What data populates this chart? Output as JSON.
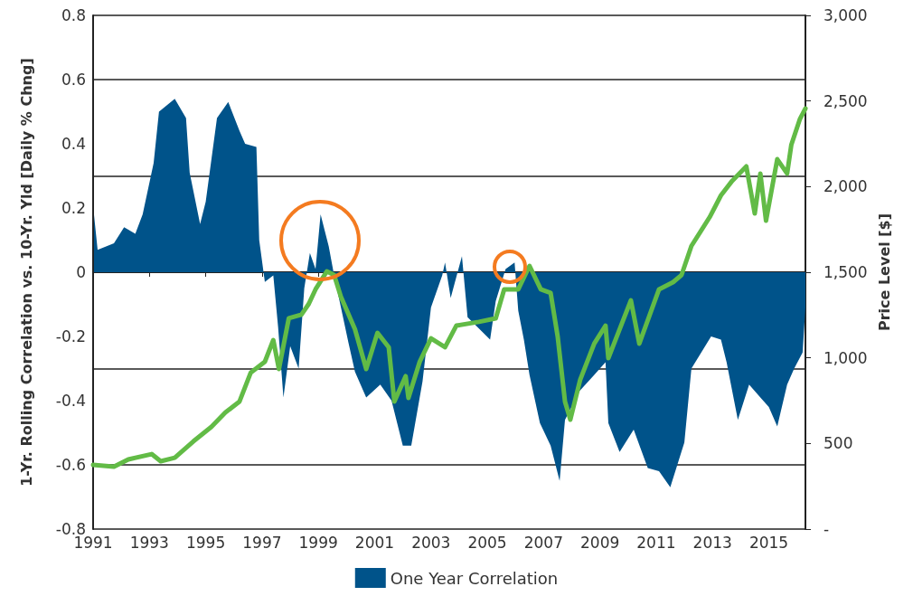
{
  "chart_data": {
    "type": "area",
    "ylabel": "1-Yr. Rolling Correlation vs. 10-Yr. Yld [Daily % Chng]",
    "y2label": "Price Level [$]",
    "xlim": [
      1991,
      2016.3
    ],
    "xticks": [
      1991,
      1993,
      1995,
      1997,
      1999,
      2001,
      2003,
      2005,
      2007,
      2009,
      2011,
      2013,
      2015
    ],
    "ylim": [
      -0.8,
      0.8
    ],
    "yticks": [
      -0.8,
      -0.6,
      -0.4,
      -0.2,
      0,
      0.2,
      0.4,
      0.6,
      0.8
    ],
    "y2lim": [
      0,
      3000
    ],
    "y2ticks": [
      {
        "value": 0,
        "label": "-"
      },
      500,
      {
        "value": 1000,
        "label": "1,000"
      },
      {
        "value": 1500,
        "label": "1,500"
      },
      {
        "value": 2000,
        "label": "2,000"
      },
      {
        "value": 2500,
        "label": "2,500"
      },
      {
        "value": 3000,
        "label": "3,000"
      }
    ],
    "grid": "y",
    "legend": "bottom",
    "marker": "none",
    "series": [
      {
        "name": "One Year Correlation",
        "color": "#00538a",
        "x": [
          1991.03,
          1991.16,
          1991.74,
          1992.1,
          1992.5,
          1992.76,
          1993.15,
          1993.34,
          1993.9,
          1994.3,
          1994.43,
          1994.8,
          1995.0,
          1995.4,
          1995.8,
          1996.2,
          1996.4,
          1996.8,
          1996.9,
          1997.1,
          1997.4,
          1997.57,
          1997.76,
          1998.0,
          1998.3,
          1998.5,
          1998.7,
          1998.9,
          1999.08,
          1999.37,
          1999.56,
          2000.07,
          2000.3,
          2000.7,
          2001.2,
          2001.6,
          2002.0,
          2002.3,
          2002.7,
          2003.0,
          2003.4,
          2003.5,
          2003.7,
          2004.1,
          2004.3,
          2005.1,
          2005.3,
          2005.65,
          2005.97,
          2006.1,
          2006.3,
          2006.5,
          2006.87,
          2007.25,
          2007.57,
          2007.76,
          2008.28,
          2008.8,
          2009.2,
          2009.3,
          2009.7,
          2010.2,
          2010.7,
          2011.1,
          2011.5,
          2012.0,
          2012.25,
          2012.6,
          2012.95,
          2013.3,
          2013.5,
          2013.9,
          2014.3,
          2014.7,
          2015.0,
          2015.3,
          2015.65,
          2015.9,
          2016.2,
          2016.3
        ],
        "values": [
          0.18,
          0.07,
          0.09,
          0.14,
          0.12,
          0.18,
          0.34,
          0.5,
          0.54,
          0.48,
          0.31,
          0.15,
          0.22,
          0.48,
          0.53,
          0.44,
          0.4,
          0.39,
          0.1,
          -0.03,
          -0.01,
          -0.17,
          -0.39,
          -0.23,
          -0.3,
          -0.05,
          0.06,
          0.01,
          0.18,
          0.08,
          -0.01,
          -0.22,
          -0.31,
          -0.39,
          -0.35,
          -0.4,
          -0.54,
          -0.54,
          -0.34,
          -0.11,
          -0.01,
          0.03,
          -0.08,
          0.05,
          -0.14,
          -0.21,
          -0.09,
          0.01,
          0.03,
          -0.12,
          -0.21,
          -0.32,
          -0.47,
          -0.54,
          -0.65,
          -0.46,
          -0.37,
          -0.32,
          -0.28,
          -0.47,
          -0.56,
          -0.49,
          -0.61,
          -0.62,
          -0.67,
          -0.53,
          -0.3,
          -0.25,
          -0.2,
          -0.21,
          -0.28,
          -0.46,
          -0.35,
          -0.39,
          -0.42,
          -0.48,
          -0.35,
          -0.3,
          -0.25,
          -0.11
        ]
      },
      {
        "type": "line",
        "axis": "y2",
        "color": "#62bb46",
        "x": [
          1991.0,
          1991.74,
          1992.25,
          1993.08,
          1993.4,
          1993.9,
          1994.56,
          1995.2,
          1995.7,
          1996.2,
          1996.6,
          1997.1,
          1997.4,
          1997.6,
          1997.95,
          1998.4,
          1998.66,
          1998.9,
          1999.3,
          1999.56,
          1999.8,
          2000.3,
          2000.7,
          2001.1,
          2001.5,
          2001.7,
          2002.1,
          2002.2,
          2002.6,
          2003.0,
          2003.5,
          2003.9,
          2004.7,
          2005.3,
          2005.6,
          2006.1,
          2006.5,
          2006.9,
          2007.25,
          2007.5,
          2007.76,
          2007.95,
          2008.3,
          2008.8,
          2009.2,
          2009.3,
          2010.1,
          2010.4,
          2011.1,
          2011.6,
          2011.9,
          2012.25,
          2012.9,
          2013.3,
          2013.7,
          2014.2,
          2014.5,
          2014.7,
          2014.9,
          2015.3,
          2015.65,
          2015.8,
          2016.1,
          2016.3
        ],
        "values": [
          375,
          364,
          407,
          438,
          396,
          417,
          512,
          597,
          681,
          745,
          914,
          977,
          1104,
          935,
          1231,
          1252,
          1315,
          1400,
          1505,
          1484,
          1357,
          1167,
          935,
          1146,
          1062,
          745,
          893,
          766,
          977,
          1114,
          1062,
          1188,
          1210,
          1231,
          1400,
          1400,
          1537,
          1400,
          1379,
          1125,
          745,
          639,
          872,
          1083,
          1188,
          998,
          1336,
          1083,
          1400,
          1442,
          1484,
          1653,
          1822,
          1949,
          2034,
          2118,
          1843,
          2076,
          1801,
          2160,
          2076,
          2245,
          2393,
          2456
        ]
      }
    ]
  }
}
